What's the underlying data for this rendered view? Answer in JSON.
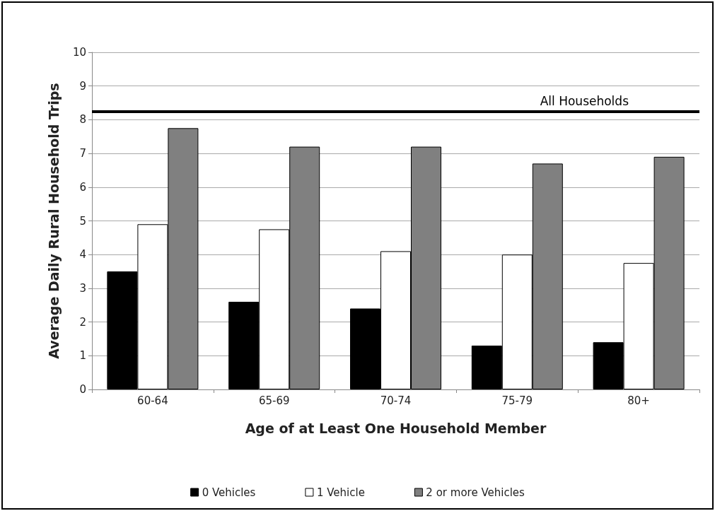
{
  "chart_data": {
    "type": "bar",
    "xlabel": "Age of at Least One Household Member",
    "ylabel": "Average Daily Rural Household Trips",
    "categories": [
      "60-64",
      "65-69",
      "70-74",
      "75-79",
      "80+"
    ],
    "series": [
      {
        "name": "0 Vehicles",
        "color": "#000000",
        "values": [
          3.5,
          2.6,
          2.4,
          1.3,
          1.4
        ]
      },
      {
        "name": "1 Vehicle",
        "color": "#ffffff",
        "values": [
          4.9,
          4.75,
          4.1,
          4.0,
          3.75
        ]
      },
      {
        "name": "2 or more Vehicles",
        "color": "#808080",
        "values": [
          7.75,
          7.2,
          7.2,
          6.7,
          6.9
        ]
      }
    ],
    "ylim": [
      0,
      10
    ],
    "yticks": [
      0,
      1,
      2,
      3,
      4,
      5,
      6,
      7,
      8,
      9,
      10
    ],
    "grid": "y",
    "legend": "bottom",
    "ref_lines": [
      {
        "axis": "y",
        "value": 8.25,
        "label": "All Households",
        "color": "#000000",
        "line_style": "solid"
      }
    ]
  }
}
